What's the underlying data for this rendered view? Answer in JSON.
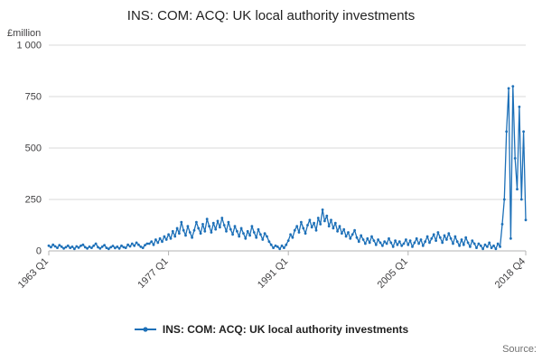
{
  "title": "INS: COM: ACQ: UK local authority investments",
  "y_axis_label": "£million",
  "legend": {
    "label": "INS: COM: ACQ: UK local authority investments"
  },
  "source_label": "Source:",
  "colors": {
    "line": "#1d70b8",
    "grid": "#d9d9d9",
    "axis": "#b3b3b3",
    "tick_text": "#414042"
  },
  "chart_data": {
    "type": "line",
    "title": "INS: COM: ACQ: UK local authority investments",
    "xlabel": "",
    "ylabel": "£million",
    "ylim": [
      0,
      1000
    ],
    "grid": "horizontal",
    "legend_position": "bottom-center",
    "x_start": "1963 Q1",
    "x_end": "2018 Q4",
    "x_frequency": "quarterly",
    "line_color": "#1d70b8",
    "y_ticks": [
      {
        "value": 0,
        "label": "0"
      },
      {
        "value": 250,
        "label": "250"
      },
      {
        "value": 500,
        "label": "500"
      },
      {
        "value": 750,
        "label": "750"
      },
      {
        "value": 1000,
        "label": "1 000"
      }
    ],
    "x_ticks": [
      {
        "index": 0,
        "label": "1963 Q1"
      },
      {
        "index": 56,
        "label": "1977 Q1"
      },
      {
        "index": 112,
        "label": "1991 Q1"
      },
      {
        "index": 168,
        "label": "2005 Q1"
      },
      {
        "index": 223,
        "label": "2018 Q4"
      }
    ],
    "values": [
      25,
      18,
      30,
      22,
      15,
      28,
      20,
      12,
      18,
      25,
      15,
      20,
      10,
      22,
      16,
      25,
      30,
      18,
      12,
      20,
      15,
      25,
      35,
      18,
      12,
      20,
      28,
      15,
      10,
      18,
      24,
      14,
      20,
      12,
      25,
      18,
      15,
      30,
      22,
      35,
      25,
      40,
      30,
      20,
      15,
      28,
      35,
      35,
      45,
      30,
      55,
      40,
      60,
      45,
      70,
      55,
      80,
      60,
      95,
      70,
      110,
      85,
      140,
      100,
      75,
      120,
      90,
      65,
      100,
      140,
      110,
      85,
      130,
      95,
      155,
      120,
      90,
      135,
      105,
      145,
      115,
      160,
      125,
      95,
      140,
      105,
      80,
      120,
      95,
      70,
      110,
      85,
      60,
      95,
      75,
      120,
      90,
      65,
      105,
      80,
      55,
      85,
      70,
      45,
      30,
      15,
      25,
      20,
      10,
      25,
      15,
      30,
      50,
      80,
      65,
      100,
      120,
      90,
      140,
      110,
      85,
      125,
      150,
      115,
      135,
      100,
      160,
      130,
      200,
      145,
      170,
      120,
      150,
      110,
      135,
      95,
      120,
      85,
      105,
      70,
      90,
      60,
      80,
      100,
      65,
      45,
      75,
      55,
      35,
      60,
      40,
      70,
      50,
      30,
      55,
      40,
      25,
      45,
      35,
      60,
      40,
      20,
      50,
      30,
      45,
      25,
      35,
      55,
      30,
      50,
      20,
      40,
      60,
      35,
      55,
      25,
      45,
      70,
      40,
      60,
      80,
      50,
      90,
      65,
      40,
      75,
      55,
      85,
      60,
      35,
      70,
      45,
      25,
      55,
      30,
      65,
      40,
      20,
      50,
      35,
      15,
      35,
      25,
      10,
      30,
      20,
      40,
      15,
      25,
      10,
      35,
      20,
      130,
      250,
      580,
      790,
      60,
      800,
      450,
      300,
      700,
      250,
      580,
      150
    ]
  }
}
